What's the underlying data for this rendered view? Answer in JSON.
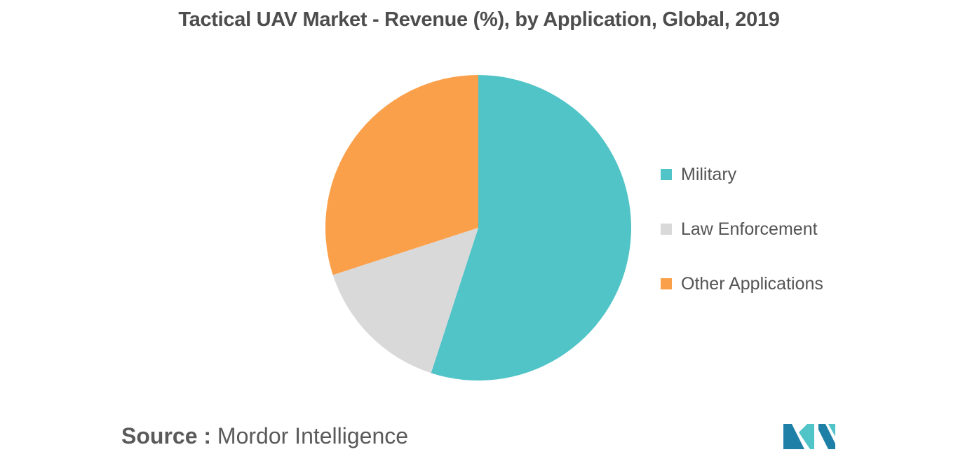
{
  "chart_data": {
    "type": "pie",
    "title": "Tactical UAV Market - Revenue (%), by Application, Global, 2019",
    "categories": [
      "Military",
      "Law Enforcement",
      "Other Applications"
    ],
    "values": [
      55,
      15,
      30
    ],
    "colors": [
      "#51c4c8",
      "#d9d9d9",
      "#fba04a"
    ],
    "legend_position": "right"
  },
  "source": {
    "prefix": "Source :",
    "name": "Mordor Intelligence"
  },
  "logo": {
    "icon": "mordor-intelligence-logo",
    "colors": [
      "#1e7fa7",
      "#51c4c8"
    ]
  }
}
